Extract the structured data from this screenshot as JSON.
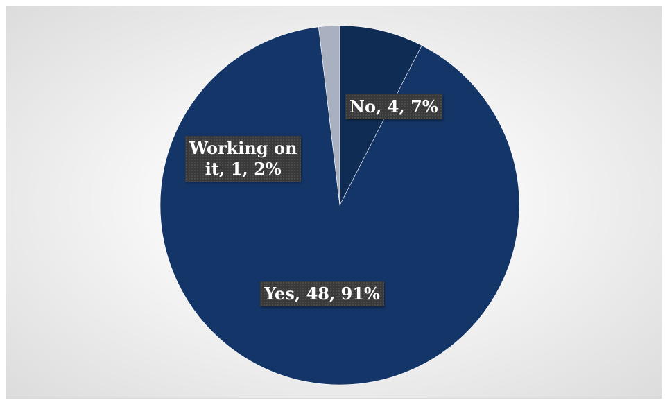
{
  "chart_data": {
    "type": "pie",
    "slices": [
      {
        "category": "No",
        "value": 4,
        "percent": "7%",
        "label_line1": "No, 4, 7%",
        "label_line2": "",
        "color": "#0f2c55"
      },
      {
        "category": "Yes",
        "value": 48,
        "percent": "91%",
        "label_line1": "Yes, 48, 91%",
        "label_line2": "",
        "color": "#143567"
      },
      {
        "category": "Working on it",
        "value": 1,
        "percent": "2%",
        "label_line1": "Working on",
        "label_line2": "it, 1, 2%",
        "color": "#a9b0bf"
      }
    ],
    "start_angle_deg": 0,
    "direction": "clockwise",
    "legend": "none",
    "label_background": "#3a3a3a"
  }
}
